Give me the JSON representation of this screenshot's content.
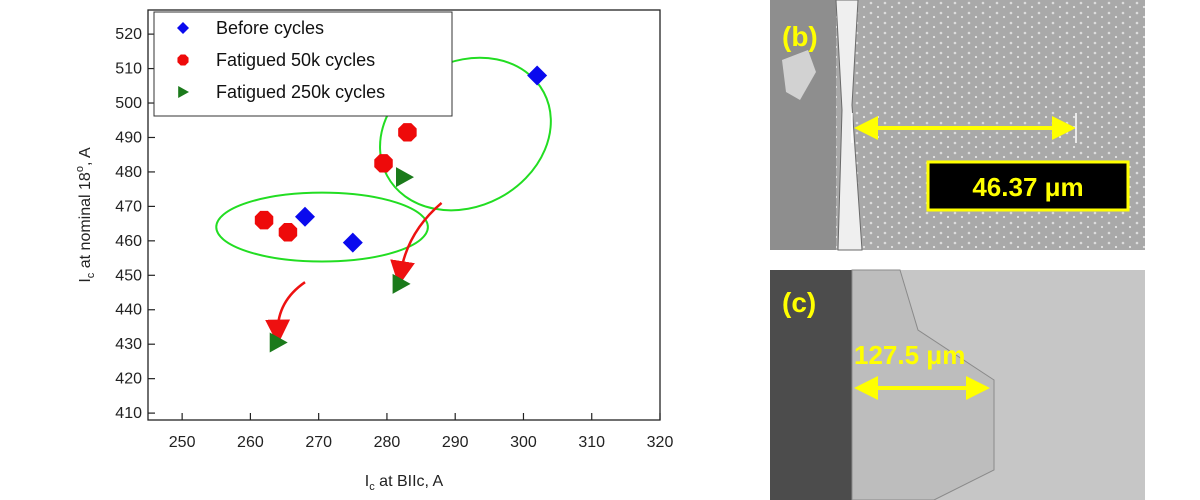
{
  "chart_data": {
    "type": "scatter",
    "xlabel_main": "I",
    "xlabel_sub": "c",
    "xlabel_rest": " at BIIc, A",
    "ylabel_main": "I",
    "ylabel_sub": "c",
    "ylabel_mid": " at nominal 18",
    "ylabel_sup": "o",
    "ylabel_rest": ", A",
    "xlim": [
      245,
      320
    ],
    "ylim": [
      408,
      527
    ],
    "xticks": [
      "250",
      "260",
      "270",
      "280",
      "290",
      "300",
      "310",
      "320"
    ],
    "yticks": [
      "410",
      "420",
      "430",
      "440",
      "450",
      "460",
      "470",
      "480",
      "490",
      "500",
      "510",
      "520"
    ],
    "legend_position": "top-left",
    "series": [
      {
        "name": "Before cycles",
        "marker": "diamond",
        "color": "#0a0aee",
        "points": [
          {
            "x": 268,
            "y": 467
          },
          {
            "x": 275,
            "y": 459.5
          },
          {
            "x": 302,
            "y": 508
          }
        ]
      },
      {
        "name": "Fatigued 50k cycles",
        "marker": "octagon",
        "color": "#ee0a0a",
        "points": [
          {
            "x": 262,
            "y": 466
          },
          {
            "x": 265.5,
            "y": 462.5
          },
          {
            "x": 279.5,
            "y": 482.5
          },
          {
            "x": 283,
            "y": 491.5
          }
        ]
      },
      {
        "name": "Fatigued 250k cycles",
        "marker": "triangle-right",
        "color": "#1b7a1b",
        "points": [
          {
            "x": 264,
            "y": 430.5
          },
          {
            "x": 282,
            "y": 447.5
          },
          {
            "x": 282.5,
            "y": 478.5
          }
        ]
      }
    ],
    "annotations": {
      "ellipse_color": "#22dd22",
      "arrow_color": "#ee1111",
      "ellipses": [
        {
          "cx": 270.5,
          "cy": 464,
          "rx": 15.5,
          "ry": 10
        },
        {
          "cx": 291.5,
          "cy": 491,
          "rx": 13,
          "ry": 21
        }
      ],
      "arrows": [
        {
          "from": [
            268,
            448
          ],
          "to": [
            264,
            433.5
          ]
        },
        {
          "from": [
            288,
            471
          ],
          "to": [
            282,
            450.5
          ]
        }
      ]
    }
  },
  "panels": {
    "b": {
      "label": "(b)",
      "scale_text": "46.37 μm"
    },
    "c": {
      "label": "(c)",
      "scale_text": "127.5 μm"
    }
  },
  "colors": {
    "scale_arrow": "#ffff00",
    "scale_box_bg": "#000000",
    "scale_box_border": "#ffff00",
    "panel_c_text": "#ffff00"
  }
}
